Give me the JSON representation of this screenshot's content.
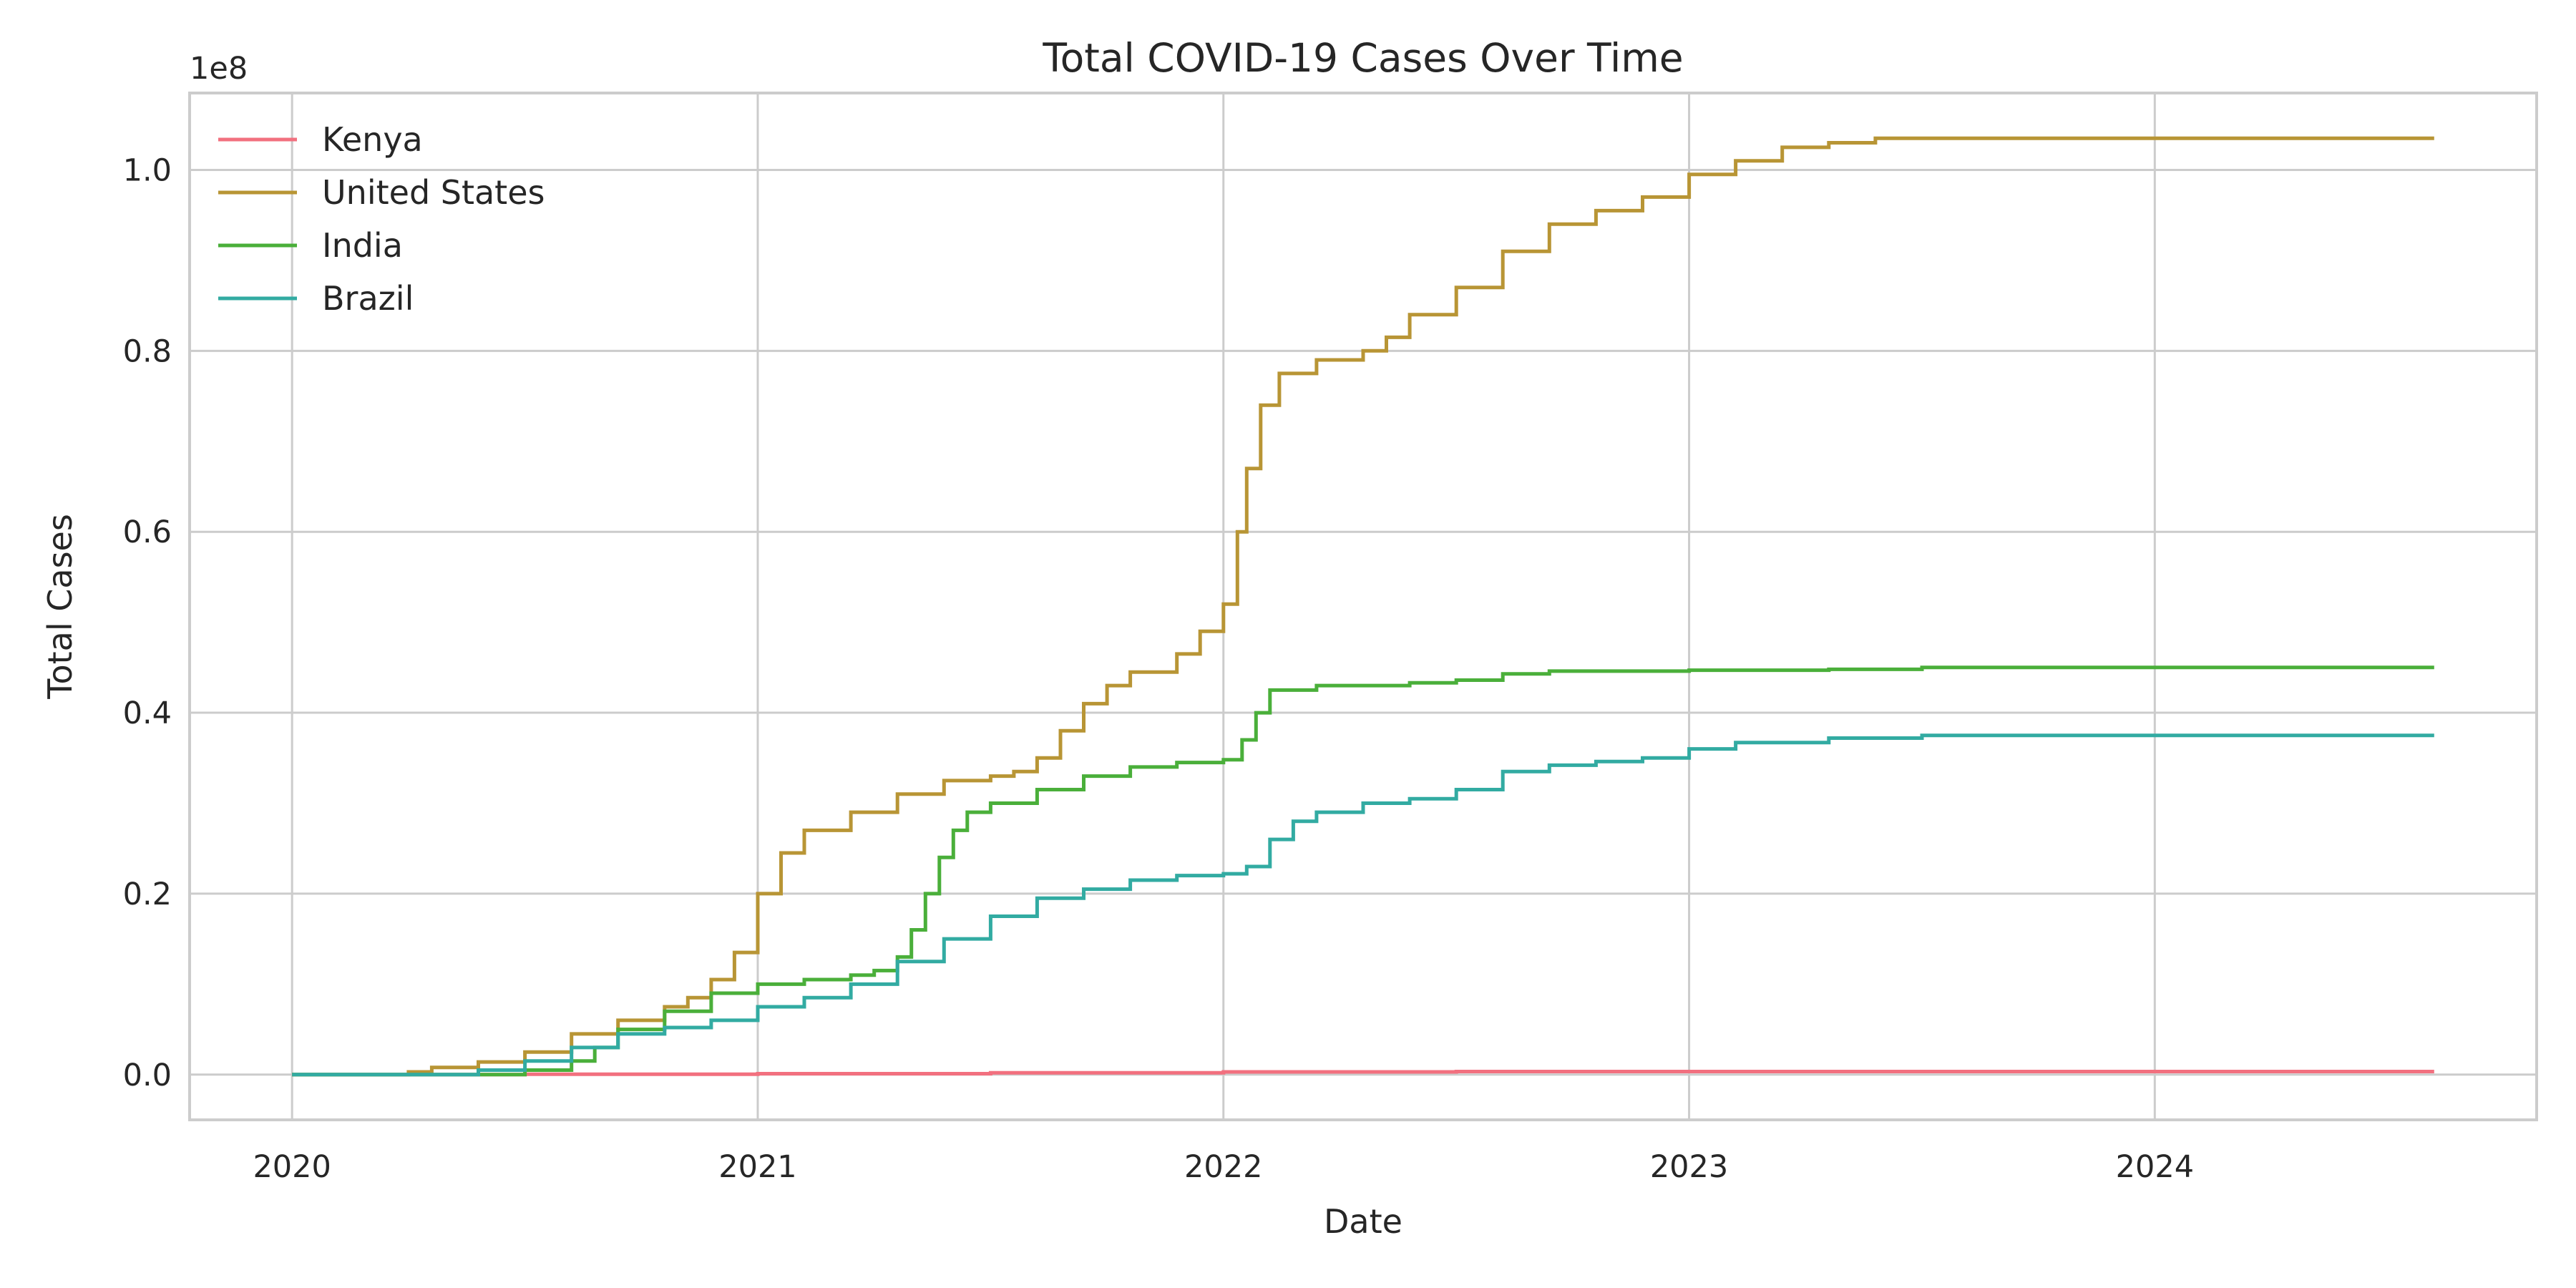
{
  "chart_data": {
    "type": "line",
    "title": "Total COVID-19 Cases Over Time",
    "xlabel": "Date",
    "ylabel": "Total Cases",
    "y_offset_label": "1e8",
    "xlim": [
      2019.78,
      2024.82
    ],
    "ylim": [
      -0.05,
      1.085
    ],
    "y_unit_multiplier": 100000000,
    "x_ticks": [
      {
        "value": 2020,
        "label": "2020"
      },
      {
        "value": 2021,
        "label": "2021"
      },
      {
        "value": 2022,
        "label": "2022"
      },
      {
        "value": 2023,
        "label": "2023"
      },
      {
        "value": 2024,
        "label": "2024"
      }
    ],
    "y_ticks": [
      {
        "value": 0.0,
        "label": "0.0"
      },
      {
        "value": 0.2,
        "label": "0.2"
      },
      {
        "value": 0.4,
        "label": "0.4"
      },
      {
        "value": 0.6,
        "label": "0.6"
      },
      {
        "value": 0.8,
        "label": "0.8"
      },
      {
        "value": 1.0,
        "label": "1.0"
      }
    ],
    "grid": true,
    "legend_position": "top-left",
    "series": [
      {
        "name": "Kenya",
        "color": "#f2707f",
        "points": [
          [
            2020.0,
            0
          ],
          [
            2020.5,
            0.0005
          ],
          [
            2021.0,
            0.001
          ],
          [
            2021.5,
            0.002
          ],
          [
            2022.0,
            0.003
          ],
          [
            2022.5,
            0.0034
          ],
          [
            2023.0,
            0.0034
          ],
          [
            2024.6,
            0.0034
          ]
        ]
      },
      {
        "name": "United States",
        "color": "#b89535",
        "points": [
          [
            2020.0,
            0
          ],
          [
            2020.2,
            0.0
          ],
          [
            2020.25,
            0.003
          ],
          [
            2020.3,
            0.008
          ],
          [
            2020.4,
            0.014
          ],
          [
            2020.5,
            0.025
          ],
          [
            2020.6,
            0.045
          ],
          [
            2020.7,
            0.06
          ],
          [
            2020.8,
            0.075
          ],
          [
            2020.85,
            0.085
          ],
          [
            2020.9,
            0.105
          ],
          [
            2020.95,
            0.135
          ],
          [
            2021.0,
            0.2
          ],
          [
            2021.05,
            0.245
          ],
          [
            2021.1,
            0.27
          ],
          [
            2021.2,
            0.29
          ],
          [
            2021.3,
            0.31
          ],
          [
            2021.4,
            0.325
          ],
          [
            2021.5,
            0.33
          ],
          [
            2021.55,
            0.335
          ],
          [
            2021.6,
            0.35
          ],
          [
            2021.65,
            0.38
          ],
          [
            2021.7,
            0.41
          ],
          [
            2021.75,
            0.43
          ],
          [
            2021.8,
            0.445
          ],
          [
            2021.9,
            0.465
          ],
          [
            2021.95,
            0.49
          ],
          [
            2022.0,
            0.52
          ],
          [
            2022.03,
            0.6
          ],
          [
            2022.05,
            0.67
          ],
          [
            2022.08,
            0.74
          ],
          [
            2022.12,
            0.775
          ],
          [
            2022.2,
            0.79
          ],
          [
            2022.3,
            0.8
          ],
          [
            2022.35,
            0.815
          ],
          [
            2022.4,
            0.84
          ],
          [
            2022.5,
            0.87
          ],
          [
            2022.6,
            0.91
          ],
          [
            2022.7,
            0.94
          ],
          [
            2022.8,
            0.955
          ],
          [
            2022.9,
            0.97
          ],
          [
            2023.0,
            0.995
          ],
          [
            2023.1,
            1.01
          ],
          [
            2023.2,
            1.025
          ],
          [
            2023.3,
            1.03
          ],
          [
            2023.4,
            1.035
          ],
          [
            2024.6,
            1.035
          ]
        ]
      },
      {
        "name": "India",
        "color": "#4aaf3a",
        "points": [
          [
            2020.0,
            0
          ],
          [
            2020.3,
            0.0
          ],
          [
            2020.5,
            0.005
          ],
          [
            2020.6,
            0.015
          ],
          [
            2020.65,
            0.03
          ],
          [
            2020.7,
            0.05
          ],
          [
            2020.8,
            0.07
          ],
          [
            2020.9,
            0.09
          ],
          [
            2021.0,
            0.1
          ],
          [
            2021.1,
            0.105
          ],
          [
            2021.2,
            0.11
          ],
          [
            2021.25,
            0.115
          ],
          [
            2021.3,
            0.13
          ],
          [
            2021.33,
            0.16
          ],
          [
            2021.36,
            0.2
          ],
          [
            2021.39,
            0.24
          ],
          [
            2021.42,
            0.27
          ],
          [
            2021.45,
            0.29
          ],
          [
            2021.5,
            0.3
          ],
          [
            2021.6,
            0.315
          ],
          [
            2021.7,
            0.33
          ],
          [
            2021.8,
            0.34
          ],
          [
            2021.9,
            0.345
          ],
          [
            2022.0,
            0.348
          ],
          [
            2022.04,
            0.37
          ],
          [
            2022.07,
            0.4
          ],
          [
            2022.1,
            0.425
          ],
          [
            2022.2,
            0.43
          ],
          [
            2022.4,
            0.433
          ],
          [
            2022.5,
            0.436
          ],
          [
            2022.6,
            0.443
          ],
          [
            2022.7,
            0.446
          ],
          [
            2023.0,
            0.447
          ],
          [
            2023.3,
            0.448
          ],
          [
            2023.5,
            0.45
          ],
          [
            2024.6,
            0.45
          ]
        ]
      },
      {
        "name": "Brazil",
        "color": "#32aba2",
        "points": [
          [
            2020.0,
            0
          ],
          [
            2020.3,
            0.0
          ],
          [
            2020.4,
            0.005
          ],
          [
            2020.5,
            0.015
          ],
          [
            2020.6,
            0.03
          ],
          [
            2020.7,
            0.045
          ],
          [
            2020.8,
            0.052
          ],
          [
            2020.9,
            0.06
          ],
          [
            2021.0,
            0.075
          ],
          [
            2021.1,
            0.085
          ],
          [
            2021.2,
            0.1
          ],
          [
            2021.3,
            0.125
          ],
          [
            2021.4,
            0.15
          ],
          [
            2021.5,
            0.175
          ],
          [
            2021.6,
            0.195
          ],
          [
            2021.7,
            0.205
          ],
          [
            2021.8,
            0.215
          ],
          [
            2021.9,
            0.22
          ],
          [
            2022.0,
            0.222
          ],
          [
            2022.05,
            0.23
          ],
          [
            2022.1,
            0.26
          ],
          [
            2022.15,
            0.28
          ],
          [
            2022.2,
            0.29
          ],
          [
            2022.3,
            0.3
          ],
          [
            2022.4,
            0.305
          ],
          [
            2022.5,
            0.315
          ],
          [
            2022.6,
            0.335
          ],
          [
            2022.7,
            0.342
          ],
          [
            2022.8,
            0.346
          ],
          [
            2022.9,
            0.35
          ],
          [
            2023.0,
            0.36
          ],
          [
            2023.1,
            0.367
          ],
          [
            2023.3,
            0.372
          ],
          [
            2023.5,
            0.375
          ],
          [
            2024.6,
            0.375
          ]
        ]
      }
    ]
  }
}
